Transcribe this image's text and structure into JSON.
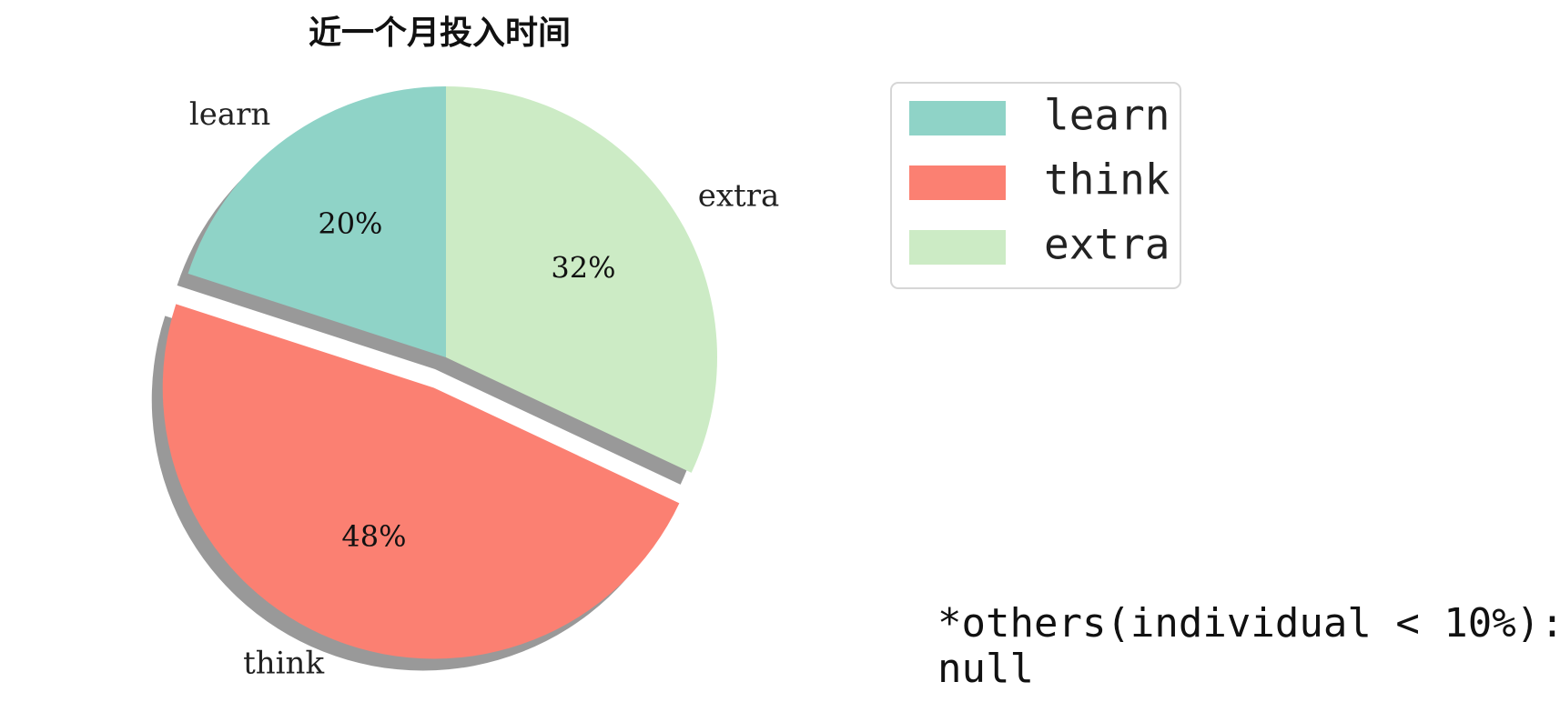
{
  "chart_data": {
    "type": "pie",
    "title": "近一个月投入时间",
    "categories": [
      "learn",
      "think",
      "extra"
    ],
    "values": [
      20,
      48,
      32
    ],
    "percent_labels": [
      "20%",
      "48%",
      "32%"
    ],
    "colors": [
      "#8fd3c7",
      "#fb8072",
      "#ccebc5"
    ],
    "explode": [
      false,
      true,
      false
    ],
    "shadow": true,
    "start_angle_deg": 90,
    "direction": "counterclockwise",
    "legend": {
      "placement": "top-right",
      "entries": [
        "learn",
        "think",
        "extra"
      ]
    },
    "note_lines": [
      "*others(individual < 10%):",
      "null"
    ]
  }
}
